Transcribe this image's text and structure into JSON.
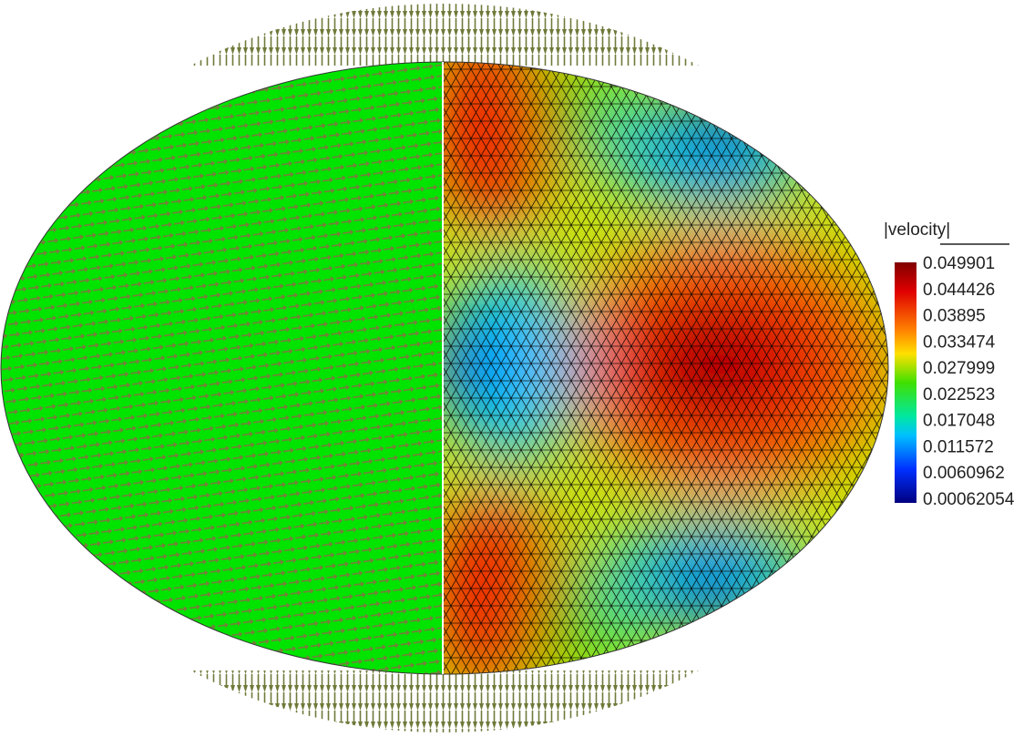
{
  "legend": {
    "title": "|velocity|",
    "labels": [
      "0.049901",
      "0.044426",
      "0.03895",
      "0.033474",
      "0.027999",
      "0.022523",
      "0.017048",
      "0.011572",
      "0.0060962",
      "0.00062054"
    ]
  }
}
